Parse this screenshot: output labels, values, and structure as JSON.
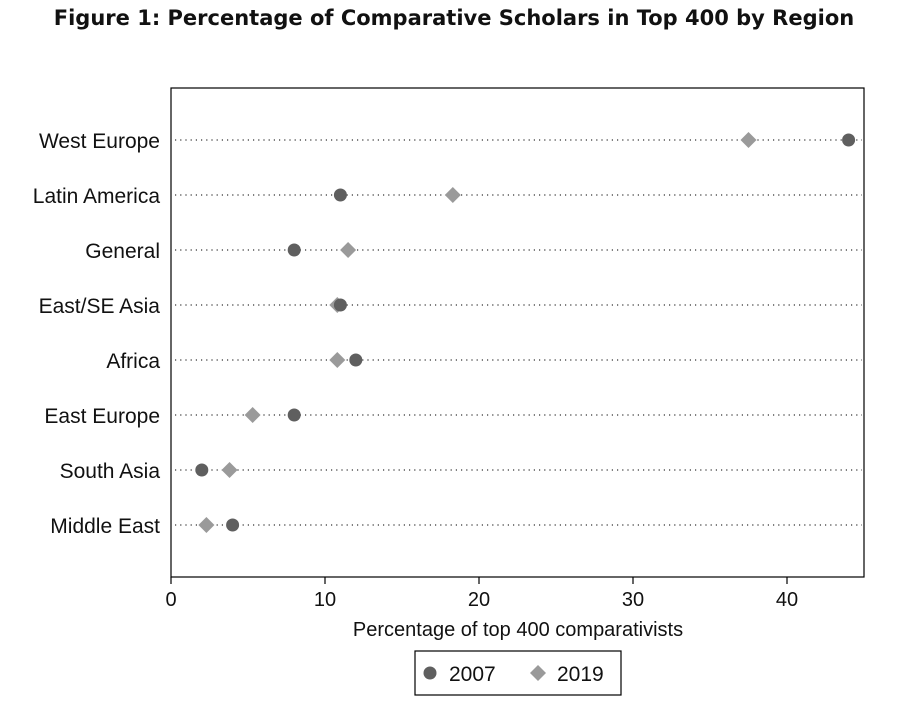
{
  "title": "Figure 1: Percentage of Comparative Scholars in Top 400 by Region",
  "chart_data": {
    "type": "scatter",
    "subtype": "dot-plot",
    "categories": [
      "West Europe",
      "Latin America",
      "General",
      "East/SE Asia",
      "Africa",
      "East Europe",
      "South Asia",
      "Middle East"
    ],
    "series": [
      {
        "name": "2007",
        "marker": "circle",
        "color": "#5f5f5f",
        "values": [
          44.0,
          11.0,
          8.0,
          11.0,
          12.0,
          8.0,
          2.0,
          4.0
        ]
      },
      {
        "name": "2019",
        "marker": "diamond",
        "color": "#9a9a9a",
        "values": [
          37.5,
          18.3,
          11.5,
          10.8,
          10.8,
          5.3,
          3.8,
          2.3
        ]
      }
    ],
    "xlabel": "Percentage of top 400 comparativists",
    "xlim": [
      0,
      45
    ],
    "xticks": [
      0,
      10,
      20,
      30,
      40
    ],
    "grid": "dotted horizontal lines per category",
    "legend": {
      "placement": "bottom-center",
      "entries": [
        "2007",
        "2019"
      ]
    }
  }
}
